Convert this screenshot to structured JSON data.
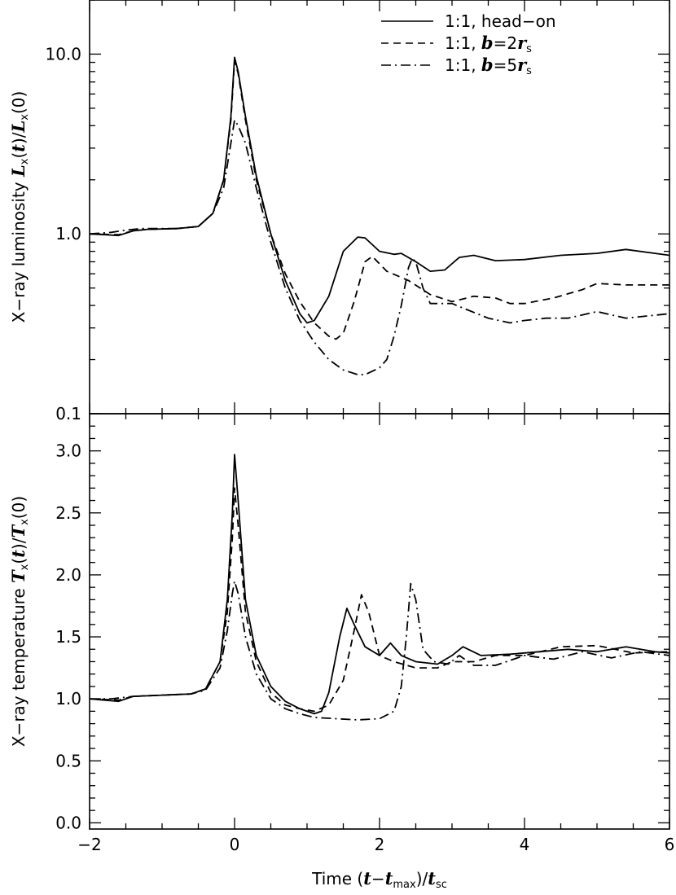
{
  "chart_data": [
    {
      "type": "line",
      "panel": "top",
      "y_scale": "log",
      "ylim": [
        0.1,
        20
      ],
      "xlim": [
        -2,
        6
      ],
      "ylabel": "X−ray luminosity L_x(t)/L_x(0)",
      "ylabel_parts": {
        "plain": "X−ray luminosity ",
        "num": "L",
        "num_sub": "x",
        "num_arg": "(t)/",
        "den": "L",
        "den_sub": "x",
        "den_arg": "(0)"
      },
      "yticks": [
        0.1,
        1.0,
        10.0
      ],
      "ytick_labels": [
        "0.1",
        "1.0",
        "10.0"
      ],
      "legend_position": "top-right",
      "legend": [
        {
          "plain": "1:1, head−on",
          "italic": "",
          "rest": "",
          "sub": "",
          "style": "solid"
        },
        {
          "plain": "1:1, ",
          "italic": "b",
          "rest": "=2r",
          "sub": "s",
          "style": "dashed"
        },
        {
          "plain": "1:1, ",
          "italic": "b",
          "rest": "=5r",
          "sub": "s",
          "style": "dashdot"
        }
      ],
      "series": [
        {
          "style": "solid",
          "points": [
            [
              -2,
              1.0
            ],
            [
              -1.6,
              0.98
            ],
            [
              -1.4,
              1.04
            ],
            [
              -1.2,
              1.06
            ],
            [
              -0.8,
              1.07
            ],
            [
              -0.5,
              1.1
            ],
            [
              -0.3,
              1.3
            ],
            [
              -0.15,
              2.0
            ],
            [
              -0.05,
              4.5
            ],
            [
              0.0,
              9.6
            ],
            [
              0.05,
              8.0
            ],
            [
              0.15,
              4.5
            ],
            [
              0.3,
              2.1
            ],
            [
              0.5,
              1.0
            ],
            [
              0.7,
              0.55
            ],
            [
              0.9,
              0.36
            ],
            [
              1.0,
              0.32
            ],
            [
              1.1,
              0.33
            ],
            [
              1.3,
              0.45
            ],
            [
              1.5,
              0.8
            ],
            [
              1.7,
              0.96
            ],
            [
              1.8,
              0.95
            ],
            [
              2.0,
              0.8
            ],
            [
              2.2,
              0.77
            ],
            [
              2.3,
              0.78
            ],
            [
              2.5,
              0.7
            ],
            [
              2.7,
              0.62
            ],
            [
              2.9,
              0.63
            ],
            [
              3.1,
              0.74
            ],
            [
              3.3,
              0.76
            ],
            [
              3.6,
              0.71
            ],
            [
              4.0,
              0.72
            ],
            [
              4.5,
              0.76
            ],
            [
              5.0,
              0.78
            ],
            [
              5.4,
              0.82
            ],
            [
              5.8,
              0.78
            ],
            [
              6.0,
              0.76
            ]
          ]
        },
        {
          "style": "dashed",
          "points": [
            [
              -2,
              1.0
            ],
            [
              -1.6,
              0.99
            ],
            [
              -1.4,
              1.04
            ],
            [
              -1.2,
              1.06
            ],
            [
              -0.8,
              1.07
            ],
            [
              -0.5,
              1.1
            ],
            [
              -0.3,
              1.3
            ],
            [
              -0.15,
              2.0
            ],
            [
              -0.05,
              4.3
            ],
            [
              0.0,
              9.2
            ],
            [
              0.05,
              7.8
            ],
            [
              0.15,
              4.3
            ],
            [
              0.3,
              2.0
            ],
            [
              0.5,
              1.0
            ],
            [
              0.7,
              0.6
            ],
            [
              0.9,
              0.42
            ],
            [
              1.1,
              0.32
            ],
            [
              1.3,
              0.27
            ],
            [
              1.4,
              0.26
            ],
            [
              1.5,
              0.28
            ],
            [
              1.65,
              0.42
            ],
            [
              1.8,
              0.7
            ],
            [
              1.9,
              0.75
            ],
            [
              2.1,
              0.62
            ],
            [
              2.4,
              0.55
            ],
            [
              2.7,
              0.46
            ],
            [
              3.0,
              0.42
            ],
            [
              3.3,
              0.45
            ],
            [
              3.6,
              0.44
            ],
            [
              3.8,
              0.41
            ],
            [
              4.0,
              0.41
            ],
            [
              4.4,
              0.44
            ],
            [
              4.8,
              0.49
            ],
            [
              5.0,
              0.53
            ],
            [
              5.4,
              0.52
            ],
            [
              6.0,
              0.52
            ]
          ]
        },
        {
          "style": "dashdot",
          "points": [
            [
              -2,
              1.0
            ],
            [
              -1.7,
              1.02
            ],
            [
              -1.5,
              1.05
            ],
            [
              -1.3,
              1.07
            ],
            [
              -1.1,
              1.07
            ],
            [
              -0.8,
              1.07
            ],
            [
              -0.5,
              1.1
            ],
            [
              -0.3,
              1.3
            ],
            [
              -0.15,
              1.8
            ],
            [
              -0.05,
              3.2
            ],
            [
              0.0,
              4.3
            ],
            [
              0.05,
              4.0
            ],
            [
              0.15,
              3.2
            ],
            [
              0.3,
              1.8
            ],
            [
              0.5,
              0.9
            ],
            [
              0.7,
              0.5
            ],
            [
              0.9,
              0.33
            ],
            [
              1.1,
              0.25
            ],
            [
              1.3,
              0.2
            ],
            [
              1.5,
              0.175
            ],
            [
              1.7,
              0.165
            ],
            [
              1.8,
              0.165
            ],
            [
              2.0,
              0.18
            ],
            [
              2.1,
              0.2
            ],
            [
              2.2,
              0.27
            ],
            [
              2.3,
              0.4
            ],
            [
              2.4,
              0.65
            ],
            [
              2.45,
              0.73
            ],
            [
              2.5,
              0.7
            ],
            [
              2.6,
              0.5
            ],
            [
              2.7,
              0.41
            ],
            [
              3.0,
              0.41
            ],
            [
              3.2,
              0.38
            ],
            [
              3.5,
              0.34
            ],
            [
              3.8,
              0.32
            ],
            [
              4.0,
              0.33
            ],
            [
              4.3,
              0.34
            ],
            [
              4.6,
              0.34
            ],
            [
              5.0,
              0.37
            ],
            [
              5.4,
              0.34
            ],
            [
              6.0,
              0.36
            ]
          ]
        }
      ]
    },
    {
      "type": "line",
      "panel": "bottom",
      "y_scale": "linear",
      "ylim": [
        -0.05,
        3.3
      ],
      "xlim": [
        -2,
        6
      ],
      "xlabel": "Time (t−t_max)/t_sc",
      "xlabel_parts": {
        "plain": "Time ",
        "open": "(",
        "t": "t",
        "minus": "−",
        "t2": "t",
        "sub": "max",
        "close": ")/",
        "t3": "t",
        "sub2": "sc"
      },
      "ylabel": "X−ray temperature T_x(t)/T_x(0)",
      "ylabel_parts": {
        "plain": "X−ray temperature ",
        "num": "T",
        "num_sub": "x",
        "num_arg": "(t)/",
        "den": "T",
        "den_sub": "x",
        "den_arg": "(0)"
      },
      "yticks": [
        0.0,
        0.5,
        1.0,
        1.5,
        2.0,
        2.5,
        3.0
      ],
      "ytick_labels": [
        "0.0",
        "0.5",
        "1.0",
        "1.5",
        "2.0",
        "2.5",
        "3.0"
      ],
      "xticks": [
        -2,
        0,
        2,
        4,
        6
      ],
      "xtick_labels": [
        "−2",
        "0",
        "2",
        "4",
        "6"
      ],
      "series": [
        {
          "style": "solid",
          "points": [
            [
              -2,
              1.0
            ],
            [
              -1.6,
              0.98
            ],
            [
              -1.4,
              1.02
            ],
            [
              -1.0,
              1.03
            ],
            [
              -0.6,
              1.04
            ],
            [
              -0.4,
              1.08
            ],
            [
              -0.2,
              1.3
            ],
            [
              -0.1,
              1.8
            ],
            [
              -0.03,
              2.5
            ],
            [
              0.0,
              2.97
            ],
            [
              0.05,
              2.6
            ],
            [
              0.15,
              1.8
            ],
            [
              0.3,
              1.35
            ],
            [
              0.5,
              1.1
            ],
            [
              0.7,
              0.98
            ],
            [
              0.9,
              0.92
            ],
            [
              1.0,
              0.9
            ],
            [
              1.1,
              0.88
            ],
            [
              1.2,
              0.9
            ],
            [
              1.3,
              1.05
            ],
            [
              1.45,
              1.5
            ],
            [
              1.55,
              1.73
            ],
            [
              1.65,
              1.6
            ],
            [
              1.8,
              1.42
            ],
            [
              2.0,
              1.35
            ],
            [
              2.15,
              1.45
            ],
            [
              2.3,
              1.35
            ],
            [
              2.5,
              1.3
            ],
            [
              2.8,
              1.28
            ],
            [
              3.0,
              1.35
            ],
            [
              3.15,
              1.42
            ],
            [
              3.4,
              1.35
            ],
            [
              3.8,
              1.36
            ],
            [
              4.2,
              1.38
            ],
            [
              4.6,
              1.4
            ],
            [
              5.0,
              1.38
            ],
            [
              5.4,
              1.42
            ],
            [
              5.8,
              1.38
            ],
            [
              6.0,
              1.37
            ]
          ]
        },
        {
          "style": "dashed",
          "points": [
            [
              -2,
              1.0
            ],
            [
              -1.6,
              0.99
            ],
            [
              -1.4,
              1.02
            ],
            [
              -1.0,
              1.03
            ],
            [
              -0.6,
              1.04
            ],
            [
              -0.4,
              1.08
            ],
            [
              -0.2,
              1.3
            ],
            [
              -0.1,
              1.7
            ],
            [
              -0.03,
              2.3
            ],
            [
              0.0,
              2.7
            ],
            [
              0.05,
              2.4
            ],
            [
              0.15,
              1.7
            ],
            [
              0.3,
              1.3
            ],
            [
              0.5,
              1.05
            ],
            [
              0.7,
              0.95
            ],
            [
              0.9,
              0.92
            ],
            [
              1.1,
              0.9
            ],
            [
              1.3,
              0.95
            ],
            [
              1.5,
              1.15
            ],
            [
              1.65,
              1.55
            ],
            [
              1.75,
              1.84
            ],
            [
              1.85,
              1.7
            ],
            [
              2.0,
              1.35
            ],
            [
              2.2,
              1.3
            ],
            [
              2.5,
              1.25
            ],
            [
              2.8,
              1.25
            ],
            [
              3.0,
              1.3
            ],
            [
              3.3,
              1.3
            ],
            [
              3.6,
              1.35
            ],
            [
              4.0,
              1.35
            ],
            [
              4.5,
              1.42
            ],
            [
              5.0,
              1.43
            ],
            [
              5.5,
              1.37
            ],
            [
              6.0,
              1.38
            ]
          ]
        },
        {
          "style": "dashdot",
          "points": [
            [
              -2,
              1.0
            ],
            [
              -1.7,
              1.0
            ],
            [
              -1.4,
              1.02
            ],
            [
              -1.0,
              1.03
            ],
            [
              -0.6,
              1.04
            ],
            [
              -0.4,
              1.07
            ],
            [
              -0.2,
              1.25
            ],
            [
              -0.1,
              1.55
            ],
            [
              -0.03,
              1.85
            ],
            [
              0.0,
              1.95
            ],
            [
              0.05,
              1.85
            ],
            [
              0.15,
              1.5
            ],
            [
              0.3,
              1.2
            ],
            [
              0.5,
              1.0
            ],
            [
              0.7,
              0.92
            ],
            [
              0.9,
              0.88
            ],
            [
              1.1,
              0.85
            ],
            [
              1.4,
              0.84
            ],
            [
              1.7,
              0.83
            ],
            [
              2.0,
              0.84
            ],
            [
              2.2,
              0.9
            ],
            [
              2.3,
              1.1
            ],
            [
              2.37,
              1.5
            ],
            [
              2.43,
              1.93
            ],
            [
              2.5,
              1.8
            ],
            [
              2.6,
              1.4
            ],
            [
              2.75,
              1.3
            ],
            [
              2.95,
              1.28
            ],
            [
              3.1,
              1.35
            ],
            [
              3.3,
              1.27
            ],
            [
              3.6,
              1.27
            ],
            [
              4.0,
              1.35
            ],
            [
              4.4,
              1.32
            ],
            [
              4.8,
              1.38
            ],
            [
              5.2,
              1.33
            ],
            [
              5.6,
              1.38
            ],
            [
              6.0,
              1.35
            ]
          ]
        }
      ]
    }
  ]
}
